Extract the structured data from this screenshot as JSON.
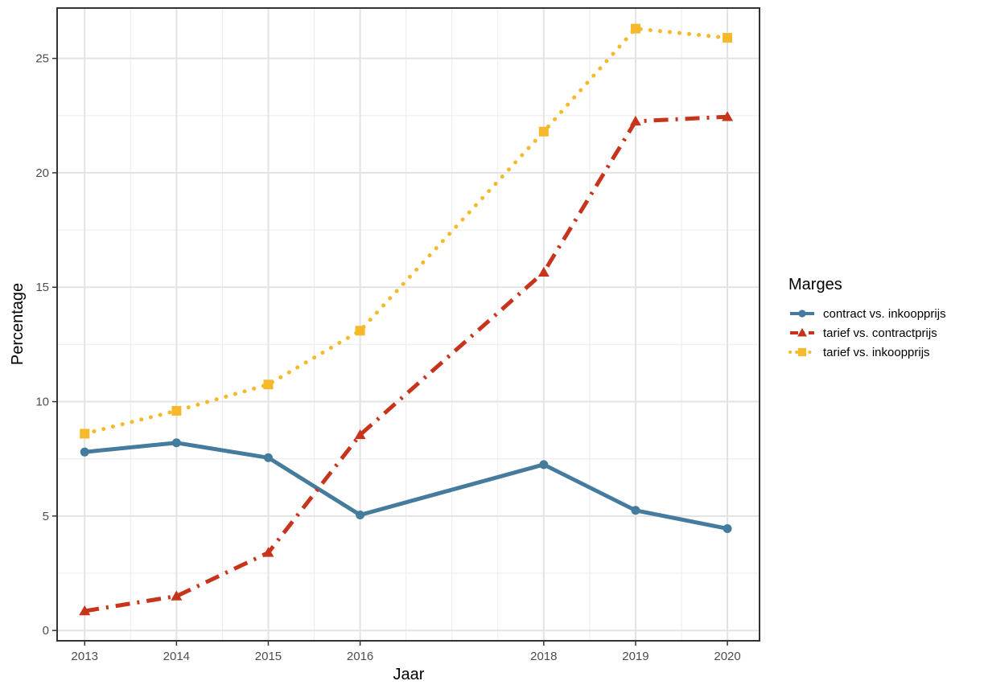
{
  "chart_data": {
    "type": "line",
    "title": "",
    "xlabel": "Jaar",
    "ylabel": "Percentage",
    "xlim": [
      2012.7,
      2020.35
    ],
    "ylim": [
      -0.45,
      27.2
    ],
    "x_ticks": [
      2013,
      2014,
      2015,
      2016,
      2018,
      2019,
      2020
    ],
    "x_minor_ticks": [
      2013.5,
      2014.5,
      2015.5,
      2016.5,
      2017,
      2017.5,
      2018.5,
      2019.5
    ],
    "y_ticks": [
      0,
      5,
      10,
      15,
      20,
      25
    ],
    "y_minor_ticks": [
      2.5,
      7.5,
      12.5,
      17.5,
      22.5
    ],
    "grid": true,
    "legend_title": "Marges",
    "legend_position": "right",
    "x": [
      2013,
      2014,
      2015,
      2016,
      2018,
      2019,
      2020
    ],
    "series": [
      {
        "name": "contract vs. inkoopprijs",
        "color": "#457B9D",
        "line_style": "solid",
        "marker": "circle",
        "values": [
          7.8,
          8.2,
          7.55,
          5.05,
          7.25,
          5.25,
          4.45
        ]
      },
      {
        "name": "tarief vs. contractprijs",
        "color": "#C8341B",
        "line_style": "dashdot",
        "marker": "triangle",
        "values": [
          0.85,
          1.5,
          3.4,
          8.55,
          15.65,
          22.25,
          22.45
        ]
      },
      {
        "name": "tarief vs. inkoopprijs",
        "color": "#F6B92B",
        "line_style": "dotted",
        "marker": "square",
        "values": [
          8.6,
          9.6,
          10.75,
          13.1,
          21.8,
          26.3,
          25.9
        ]
      }
    ]
  }
}
